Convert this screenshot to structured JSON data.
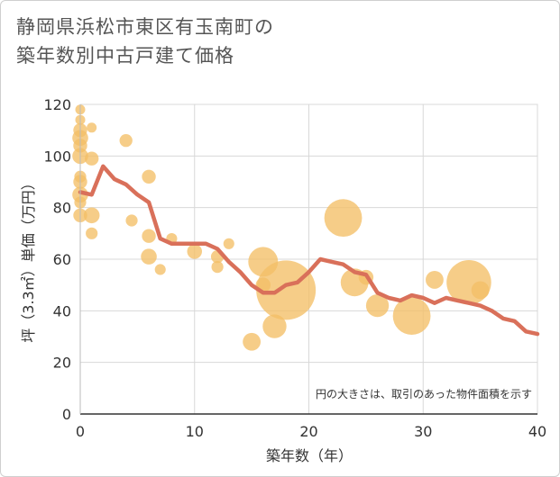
{
  "title_line1": "静岡県浜松市東区有玉南町の",
  "title_line2": "築年数別中古戸建て価格",
  "chart_data": {
    "type": "scatter",
    "title": "静岡県浜松市東区有玉南町の築年数別中古戸建て価格",
    "xlabel": "築年数（年）",
    "ylabel": "坪（3.3㎡）単価（万円）",
    "xlim": [
      0,
      40
    ],
    "ylim": [
      0,
      120
    ],
    "xticks": [
      "0",
      "10",
      "20",
      "30",
      "40"
    ],
    "yticks": [
      "0",
      "20",
      "40",
      "60",
      "80",
      "100",
      "120"
    ],
    "grid": true,
    "annotation": "円の大きさは、取引のあった物件面積を示す",
    "bubble_color": "#f3bf67",
    "line_color": "#d9705a",
    "bubbles": [
      {
        "x": 0,
        "y": 118,
        "s": 1
      },
      {
        "x": 0,
        "y": 114,
        "s": 1
      },
      {
        "x": 0,
        "y": 110,
        "s": 1.4
      },
      {
        "x": 0,
        "y": 107,
        "s": 1.6
      },
      {
        "x": 0,
        "y": 104,
        "s": 1.4
      },
      {
        "x": 0,
        "y": 100,
        "s": 1.6
      },
      {
        "x": 0,
        "y": 92,
        "s": 1.2
      },
      {
        "x": 0,
        "y": 90,
        "s": 1.4
      },
      {
        "x": 0,
        "y": 85,
        "s": 1.6
      },
      {
        "x": 0,
        "y": 82,
        "s": 1.2
      },
      {
        "x": 0,
        "y": 77,
        "s": 1.4
      },
      {
        "x": 1,
        "y": 111,
        "s": 1
      },
      {
        "x": 1,
        "y": 99,
        "s": 1.4
      },
      {
        "x": 1,
        "y": 77,
        "s": 1.6
      },
      {
        "x": 1,
        "y": 70,
        "s": 1.2
      },
      {
        "x": 4,
        "y": 106,
        "s": 1.3
      },
      {
        "x": 4.5,
        "y": 75,
        "s": 1.2
      },
      {
        "x": 6,
        "y": 92,
        "s": 1.4
      },
      {
        "x": 6,
        "y": 69,
        "s": 1.4
      },
      {
        "x": 6,
        "y": 61,
        "s": 1.6
      },
      {
        "x": 7,
        "y": 56,
        "s": 1.1
      },
      {
        "x": 8,
        "y": 68,
        "s": 1.1
      },
      {
        "x": 10,
        "y": 63,
        "s": 1.5
      },
      {
        "x": 12,
        "y": 61,
        "s": 1.3
      },
      {
        "x": 12,
        "y": 57,
        "s": 1.2
      },
      {
        "x": 13,
        "y": 66,
        "s": 1.1
      },
      {
        "x": 15,
        "y": 28,
        "s": 1.8
      },
      {
        "x": 16,
        "y": 59,
        "s": 3.0
      },
      {
        "x": 16,
        "y": 50,
        "s": 1.5
      },
      {
        "x": 17,
        "y": 34,
        "s": 2.4
      },
      {
        "x": 18,
        "y": 48,
        "s": 6.0
      },
      {
        "x": 23,
        "y": 76,
        "s": 3.8
      },
      {
        "x": 24,
        "y": 51,
        "s": 2.8
      },
      {
        "x": 25,
        "y": 53,
        "s": 1.5
      },
      {
        "x": 26,
        "y": 42,
        "s": 2.3
      },
      {
        "x": 29,
        "y": 38,
        "s": 3.8
      },
      {
        "x": 31,
        "y": 52,
        "s": 1.8
      },
      {
        "x": 34,
        "y": 51,
        "s": 4.5
      },
      {
        "x": 35,
        "y": 48,
        "s": 1.8
      }
    ],
    "line": {
      "x": [
        0,
        1,
        2,
        3,
        4,
        5,
        6,
        7,
        8,
        9,
        10,
        11,
        12,
        13,
        14,
        15,
        16,
        17,
        18,
        19,
        20,
        21,
        22,
        23,
        24,
        25,
        26,
        27,
        28,
        29,
        30,
        31,
        32,
        33,
        34,
        35,
        36,
        37,
        38,
        39,
        40
      ],
      "y": [
        86,
        85,
        96,
        91,
        89,
        85,
        82,
        68,
        66,
        66,
        66,
        66,
        64,
        59,
        55,
        50,
        47,
        47,
        50,
        51,
        55,
        60,
        59,
        58,
        55,
        54,
        47,
        45,
        44,
        46,
        45,
        43,
        45,
        44,
        43,
        42,
        40,
        37,
        36,
        32,
        31
      ]
    }
  }
}
